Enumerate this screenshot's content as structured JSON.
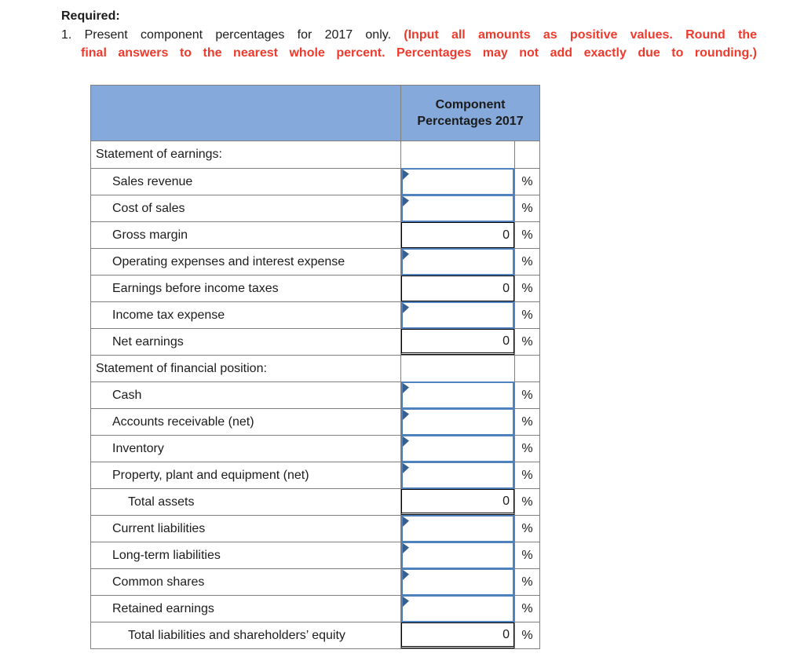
{
  "instruction": {
    "required_label": "Required:",
    "item_black": "1. Present component percentages for 2017 only.",
    "item_red_line1": "(Input all amounts as positive values. Round the",
    "item_red_line2": "final answers to the nearest whole percent. Percentages may not add exactly due to rounding.)"
  },
  "table": {
    "header": {
      "line1": "Component",
      "line2": "Percentages 2017"
    },
    "percent_symbol": "%",
    "rows": [
      {
        "label": "Statement of earnings:",
        "type": "section",
        "indent": 0,
        "value": ""
      },
      {
        "label": "Sales revenue",
        "type": "input",
        "indent": 1,
        "value": ""
      },
      {
        "label": "Cost of sales",
        "type": "input",
        "indent": 1,
        "value": ""
      },
      {
        "label": "Gross margin",
        "type": "computed",
        "indent": 1,
        "value": "0",
        "double_underline": false
      },
      {
        "label": "Operating expenses and interest expense",
        "type": "input",
        "indent": 1,
        "value": ""
      },
      {
        "label": "Earnings before income taxes",
        "type": "computed",
        "indent": 1,
        "value": "0",
        "double_underline": false
      },
      {
        "label": "Income tax expense",
        "type": "input",
        "indent": 1,
        "value": ""
      },
      {
        "label": "Net earnings",
        "type": "computed",
        "indent": 1,
        "value": "0",
        "double_underline": true
      },
      {
        "label": "Statement of financial position:",
        "type": "section",
        "indent": 0,
        "value": ""
      },
      {
        "label": "Cash",
        "type": "input",
        "indent": 1,
        "value": ""
      },
      {
        "label": "Accounts receivable (net)",
        "type": "input",
        "indent": 1,
        "value": ""
      },
      {
        "label": "Inventory",
        "type": "input",
        "indent": 1,
        "value": ""
      },
      {
        "label": "Property, plant and equipment (net)",
        "type": "input",
        "indent": 1,
        "value": ""
      },
      {
        "label": "Total assets",
        "type": "computed",
        "indent": 2,
        "value": "0",
        "double_underline": true
      },
      {
        "label": "Current liabilities",
        "type": "input",
        "indent": 1,
        "value": ""
      },
      {
        "label": "Long-term liabilities",
        "type": "input",
        "indent": 1,
        "value": ""
      },
      {
        "label": "Common shares",
        "type": "input",
        "indent": 1,
        "value": ""
      },
      {
        "label": "Retained earnings",
        "type": "input",
        "indent": 1,
        "value": ""
      },
      {
        "label": "Total liabilities and shareholders’ equity",
        "type": "computed",
        "indent": 2,
        "value": "0",
        "double_underline": true
      }
    ]
  },
  "colors": {
    "header_blue": "#85a9da",
    "input_border_blue": "#4f81bd",
    "marker_blue": "#36608f",
    "warning_red": "#ee3a2c",
    "grid_gray": "#7f7f7f"
  }
}
